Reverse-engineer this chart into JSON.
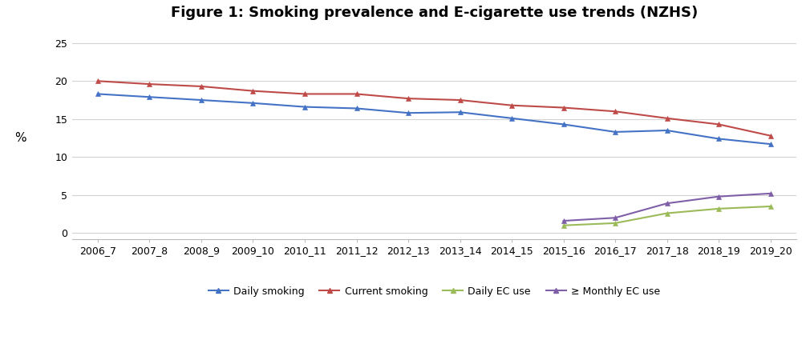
{
  "title": "Figure 1: Smoking prevalence and E-cigarette use trends (NZHS)",
  "ylabel": "%",
  "categories": [
    "2006_7",
    "2007_8",
    "2008_9",
    "2009_10",
    "2010_11",
    "2011_12",
    "2012_13",
    "2013_14",
    "2014_15",
    "2015_16",
    "2016_17",
    "2017_18",
    "2018_19",
    "2019_20"
  ],
  "daily_smoking": [
    18.3,
    17.9,
    17.5,
    17.1,
    16.6,
    16.4,
    15.8,
    15.9,
    15.1,
    14.3,
    13.3,
    13.5,
    12.4,
    11.7
  ],
  "current_smoking": [
    20.0,
    19.6,
    19.3,
    18.7,
    18.3,
    18.3,
    17.7,
    17.5,
    16.8,
    16.5,
    16.0,
    15.1,
    14.3,
    12.8
  ],
  "daily_ec": [
    null,
    null,
    null,
    null,
    null,
    null,
    null,
    null,
    null,
    1.0,
    1.3,
    2.6,
    3.2,
    3.5
  ],
  "monthly_ec": [
    null,
    null,
    null,
    null,
    null,
    null,
    null,
    null,
    null,
    1.6,
    2.0,
    3.9,
    4.8,
    5.2
  ],
  "line_colors": {
    "daily_smoking": "#4472C4",
    "current_smoking": "#BE4B48",
    "daily_ec": "#9BBB59",
    "monthly_ec": "#7F5FA8"
  },
  "legend_labels": {
    "daily_smoking": "Daily smoking",
    "current_smoking": "Current smoking",
    "daily_ec": "Daily EC use",
    "monthly_ec": "≥ Monthly EC use"
  },
  "ylim": [
    -0.8,
    27
  ],
  "yticks": [
    0,
    5,
    10,
    15,
    20,
    25
  ],
  "ylabel_y_position": 0.47,
  "title_fontsize": 13,
  "axis_fontsize": 9,
  "legend_fontsize": 9,
  "bg_color": "#FFFFFF",
  "grid_color": "#D3D3D3",
  "marker": "^",
  "markersize": 4,
  "linewidth": 1.5
}
